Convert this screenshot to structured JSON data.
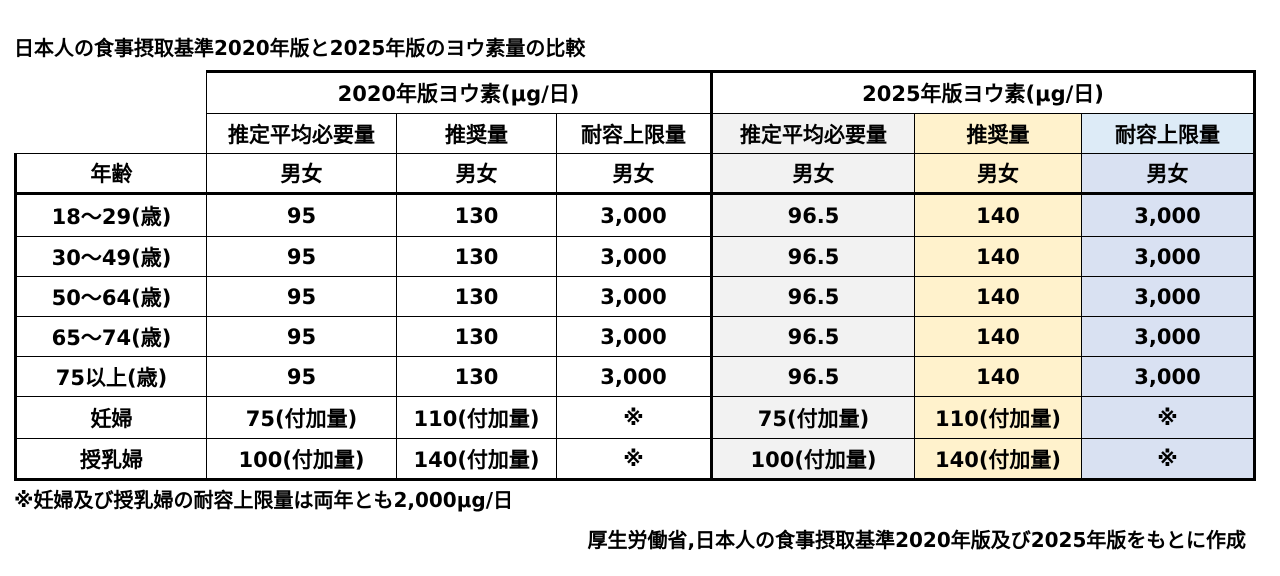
{
  "title": "日本人の食事摂取基準2020年版と2025年版のヨウ素量の比較",
  "table": {
    "group_headers": [
      "2020年版ヨウ素(μg/日)",
      "2025年版ヨウ素(μg/日)"
    ],
    "sub_headers": [
      "推定平均必要量",
      "推奨量",
      "耐容上限量",
      "推定平均必要量",
      "推奨量",
      "耐容上限量"
    ],
    "age_header": "年齢",
    "sex_headers": [
      "男女",
      "男女",
      "男女",
      "男女",
      "男女",
      "男女"
    ],
    "rows": [
      [
        "18～29(歳)",
        "95",
        "130",
        "3,000",
        "96.5",
        "140",
        "3,000"
      ],
      [
        "30～49(歳)",
        "95",
        "130",
        "3,000",
        "96.5",
        "140",
        "3,000"
      ],
      [
        "50～64(歳)",
        "95",
        "130",
        "3,000",
        "96.5",
        "140",
        "3,000"
      ],
      [
        "65～74(歳)",
        "95",
        "130",
        "3,000",
        "96.5",
        "140",
        "3,000"
      ],
      [
        "75以上(歳)",
        "95",
        "130",
        "3,000",
        "96.5",
        "140",
        "3,000"
      ],
      [
        "妊婦",
        "75(付加量)",
        "110(付加量)",
        "※",
        "75(付加量)",
        "110(付加量)",
        "※"
      ],
      [
        "授乳婦",
        "100(付加量)",
        "140(付加量)",
        "※",
        "100(付加量)",
        "140(付加量)",
        "※"
      ]
    ]
  },
  "footnote": "※妊婦及び授乳婦の耐容上限量は両年とも2,000μg/日",
  "source": "厚生労働省,日本人の食事摂取基準2020年版及び2025年版をもとに作成"
}
